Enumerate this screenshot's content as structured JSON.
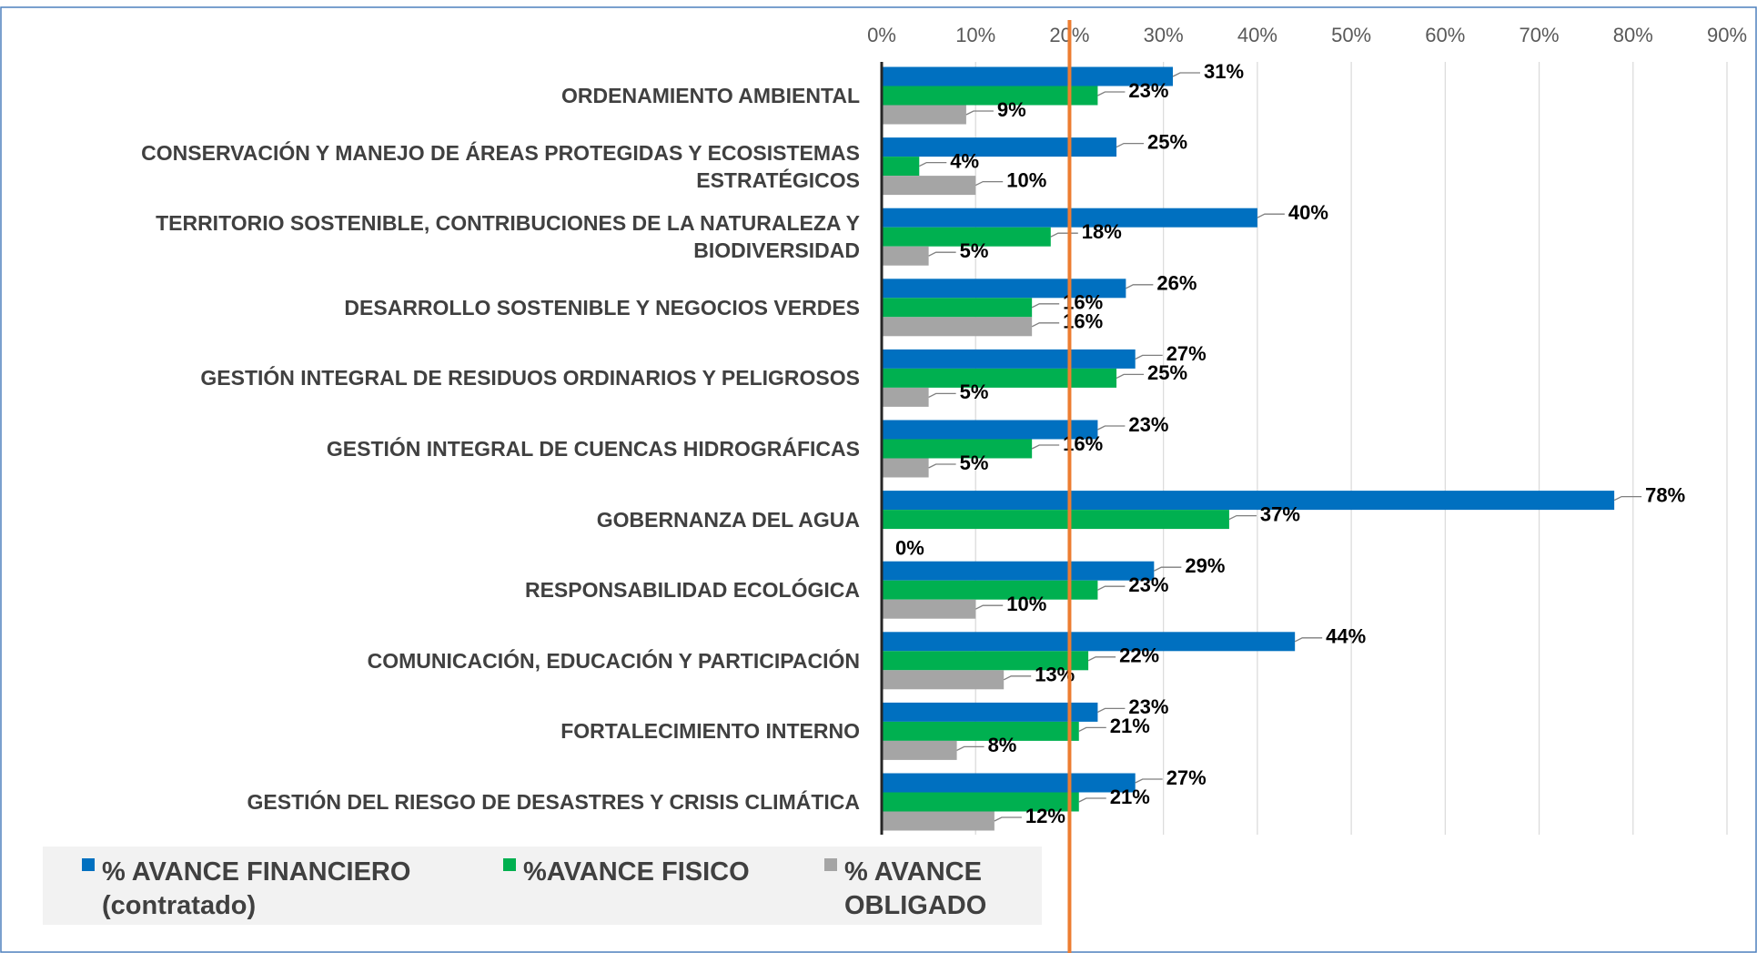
{
  "chart_data": {
    "type": "bar",
    "orientation": "horizontal",
    "categories": [
      "ORDENAMIENTO AMBIENTAL",
      "CONSERVACIÓN Y MANEJO DE ÁREAS PROTEGIDAS Y ECOSISTEMAS ESTRATÉGICOS",
      "TERRITORIO SOSTENIBLE, CONTRIBUCIONES DE LA NATURALEZA Y BIODIVERSIDAD",
      "DESARROLLO SOSTENIBLE Y NEGOCIOS VERDES",
      "GESTIÓN INTEGRAL DE RESIDUOS ORDINARIOS Y PELIGROSOS",
      "GESTIÓN INTEGRAL DE CUENCAS HIDROGRÁFICAS",
      "GOBERNANZA DEL AGUA",
      "RESPONSABILIDAD ECOLÓGICA",
      "COMUNICACIÓN, EDUCACIÓN Y PARTICIPACIÓN",
      "FORTALECIMIENTO INTERNO",
      "GESTIÓN DEL RIESGO DE DESASTRES Y CRISIS CLIMÁTICA"
    ],
    "series": [
      {
        "name": "% AVANCE FINANCIERO (contratado)",
        "color": "#0070c0",
        "values": [
          31,
          25,
          40,
          26,
          27,
          23,
          78,
          29,
          44,
          23,
          27
        ],
        "value_labels": [
          "31%",
          "25%",
          "40%",
          "26%",
          "27%",
          "23%",
          "78%",
          "29%",
          "44%",
          "23%",
          "27%"
        ]
      },
      {
        "name": "%AVANCE FISICO",
        "color": "#00b050",
        "values": [
          23,
          4,
          18,
          16,
          25,
          16,
          37,
          23,
          22,
          21,
          21
        ],
        "value_labels": [
          "23%",
          "4%",
          "18%",
          "16%",
          "25%",
          "16%",
          "37%",
          "23%",
          "22%",
          "21%",
          "21%"
        ]
      },
      {
        "name": "% AVANCE OBLIGADO",
        "color": "#a5a5a5",
        "values": [
          9,
          10,
          5,
          16,
          5,
          5,
          0,
          10,
          13,
          8,
          12
        ],
        "value_labels": [
          "9%",
          "10%",
          "5%",
          "16%",
          "5%",
          "5%",
          "0%",
          "10%",
          "13%",
          "8%",
          "12%"
        ]
      }
    ],
    "xlim": [
      0,
      90
    ],
    "xticks": [
      {
        "value": 0,
        "label": "0%"
      },
      {
        "value": 10,
        "label": "10%"
      },
      {
        "value": 20,
        "label": "20%"
      },
      {
        "value": 30,
        "label": "30%"
      },
      {
        "value": 40,
        "label": "40%"
      },
      {
        "value": 50,
        "label": "50%"
      },
      {
        "value": 60,
        "label": "60%"
      },
      {
        "value": 70,
        "label": "70%"
      },
      {
        "value": 80,
        "label": "80%"
      },
      {
        "value": 90,
        "label": "90%"
      }
    ],
    "grid": true,
    "reference_line": 20,
    "reference_color": "#ed7d31",
    "legend": "bottom-left"
  }
}
